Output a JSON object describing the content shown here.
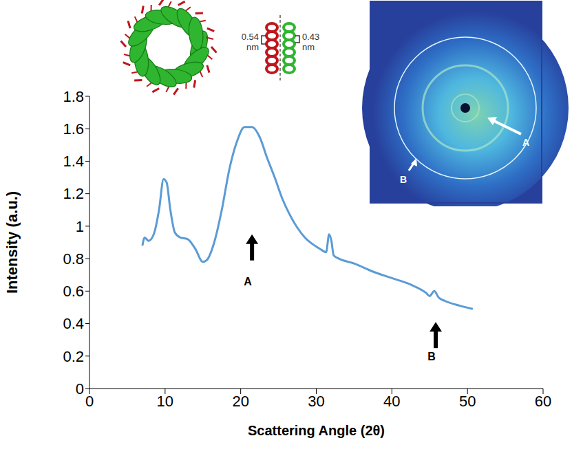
{
  "chart_data": {
    "type": "line",
    "xlabel": "Scattering Angle (2θ)",
    "ylabel": "Intensity (a.u.)",
    "x": [
      7.0,
      7.3,
      7.8,
      8.5,
      9.2,
      9.8,
      10.2,
      10.7,
      11.3,
      12,
      13,
      14,
      15,
      15.5,
      16.5,
      17.5,
      18.5,
      19.5,
      20.5,
      21.5,
      22.5,
      23.5,
      24.5,
      25.5,
      26.5,
      27.5,
      28.5,
      29.5,
      30.5,
      31.3,
      31.7,
      32.0,
      32.3,
      33,
      35,
      37.5,
      40,
      42.5,
      44.5,
      45.0,
      45.6,
      46.2,
      47,
      49,
      50.7
    ],
    "values": [
      0.88,
      0.93,
      0.91,
      0.95,
      1.1,
      1.29,
      1.27,
      1.1,
      0.96,
      0.93,
      0.92,
      0.86,
      0.78,
      0.79,
      0.9,
      1.1,
      1.35,
      1.52,
      1.61,
      1.61,
      1.55,
      1.42,
      1.3,
      1.17,
      1.07,
      0.99,
      0.93,
      0.89,
      0.86,
      0.84,
      0.95,
      0.91,
      0.82,
      0.8,
      0.77,
      0.72,
      0.68,
      0.64,
      0.59,
      0.57,
      0.6,
      0.56,
      0.54,
      0.51,
      0.49
    ],
    "color": "#5b9bd5",
    "marker": "none",
    "line_style": "solid",
    "grid": false,
    "xlim": [
      0,
      60
    ],
    "xticks": [
      0,
      10,
      20,
      30,
      40,
      50,
      60
    ],
    "ylim": [
      0,
      1.8
    ],
    "yticks": [
      0,
      0.2,
      0.4,
      0.6,
      0.8,
      1,
      1.2,
      1.4,
      1.6,
      1.8
    ],
    "annotations": [
      {
        "text": "A",
        "x": 21.5,
        "y": 0.95,
        "label_y": 0.66
      },
      {
        "text": "B",
        "x": 45.8,
        "y": 0.41,
        "label_y": 0.2
      }
    ],
    "insets": {
      "helix_labels": [
        "0.54 nm",
        "0.43 nm"
      ],
      "diffraction_labels": [
        "A",
        "B"
      ]
    }
  }
}
